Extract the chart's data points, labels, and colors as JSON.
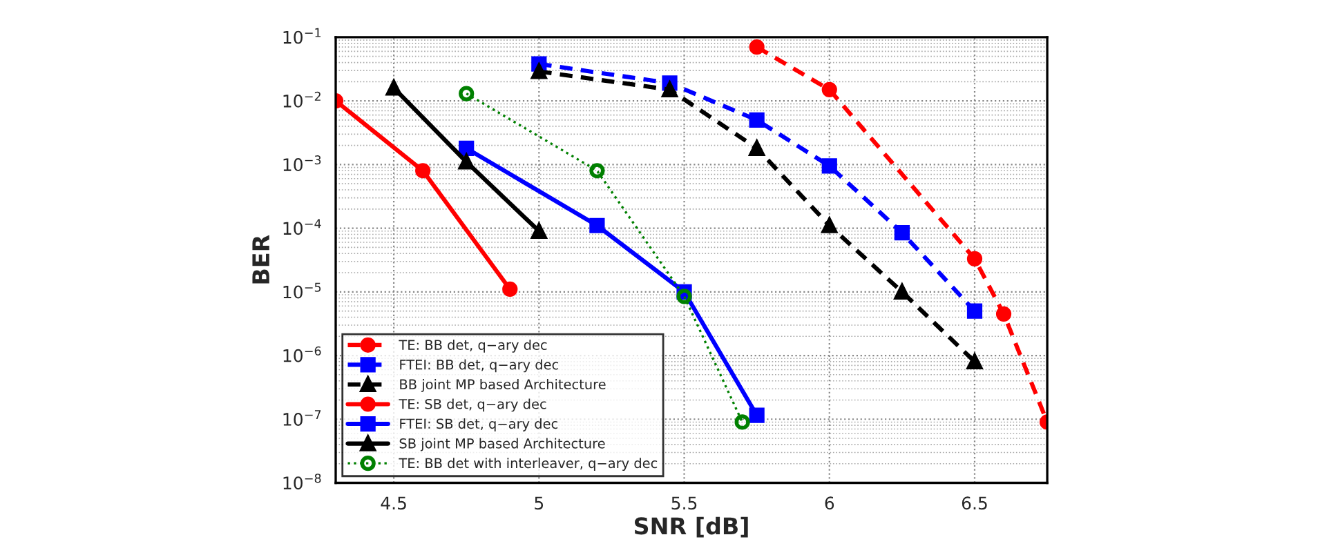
{
  "chart_data": {
    "type": "line",
    "xlabel": "SNR [dB]",
    "ylabel": "BER",
    "log": "y",
    "xlim": [
      4.3,
      6.75
    ],
    "xticks": [
      4.5,
      5,
      5.5,
      6,
      6.5
    ],
    "ylim": [
      1e-08,
      0.1
    ],
    "yticks": [
      {
        "value": 1e-08,
        "label": "10$^{−8}$"
      },
      {
        "value": 1e-07,
        "label": "10$^{−7}$"
      },
      {
        "value": 1e-06,
        "label": "10$^{−6}$"
      },
      {
        "value": 1e-05,
        "label": "10$^{−5}$"
      },
      {
        "value": 0.0001,
        "label": "10$^{−4}$"
      },
      {
        "value": 0.001,
        "label": "10$^{−3}$"
      },
      {
        "value": 0.01,
        "label": "10$^{−2}$"
      },
      {
        "value": 0.1,
        "label": "10$^{−1}$"
      }
    ],
    "grid": true,
    "legend": "bottom left",
    "series": [
      {
        "name": "TE: BB det, q−ary dec",
        "color": "#ff0000",
        "marker": "circle",
        "line_style": "dashed",
        "x": [
          5.75,
          6,
          6.5,
          6.6,
          6.75
        ],
        "values": [
          0.07,
          0.015,
          3.3e-05,
          4.5e-06,
          9e-08
        ]
      },
      {
        "name": "FTEI: BB det, q−ary dec",
        "color": "#0000ff",
        "marker": "square",
        "line_style": "dashed",
        "x": [
          5,
          5.45,
          5.75,
          6,
          6.25,
          6.5
        ],
        "values": [
          0.038,
          0.019,
          0.005,
          0.00095,
          8.5e-05,
          5e-06
        ]
      },
      {
        "name": "BB joint MP based Architecture",
        "color": "#000000",
        "marker": "triangle",
        "line_style": "dashed",
        "x": [
          5,
          5.45,
          5.75,
          6,
          6.25,
          6.5
        ],
        "values": [
          0.029,
          0.015,
          0.0018,
          0.00011,
          1e-05,
          8e-07
        ]
      },
      {
        "name": "TE: SB det, q−ary dec",
        "color": "#ff0000",
        "marker": "circle",
        "line_style": "solid",
        "x": [
          4.3,
          4.6,
          4.9
        ],
        "values": [
          0.01,
          0.0008,
          1.1e-05
        ]
      },
      {
        "name": "FTEI: SB det, q−ary dec",
        "color": "#0000ff",
        "marker": "square",
        "line_style": "solid",
        "x": [
          4.75,
          5.2,
          5.5,
          5.75
        ],
        "values": [
          0.0018,
          0.00011,
          1e-05,
          1.15e-07
        ]
      },
      {
        "name": "SB joint MP based Architecture",
        "color": "#000000",
        "marker": "triangle",
        "line_style": "solid",
        "x": [
          4.5,
          4.75,
          5
        ],
        "values": [
          0.016,
          0.0011,
          9e-05
        ]
      },
      {
        "name": "TE: BB det with interleaver, q−ary dec",
        "color": "#008000",
        "marker": "circle",
        "line_style": "dotted",
        "x": [
          4.75,
          5.2,
          5.5,
          5.7
        ],
        "values": [
          0.013,
          0.0008,
          8.5e-06,
          9e-08
        ]
      }
    ]
  }
}
